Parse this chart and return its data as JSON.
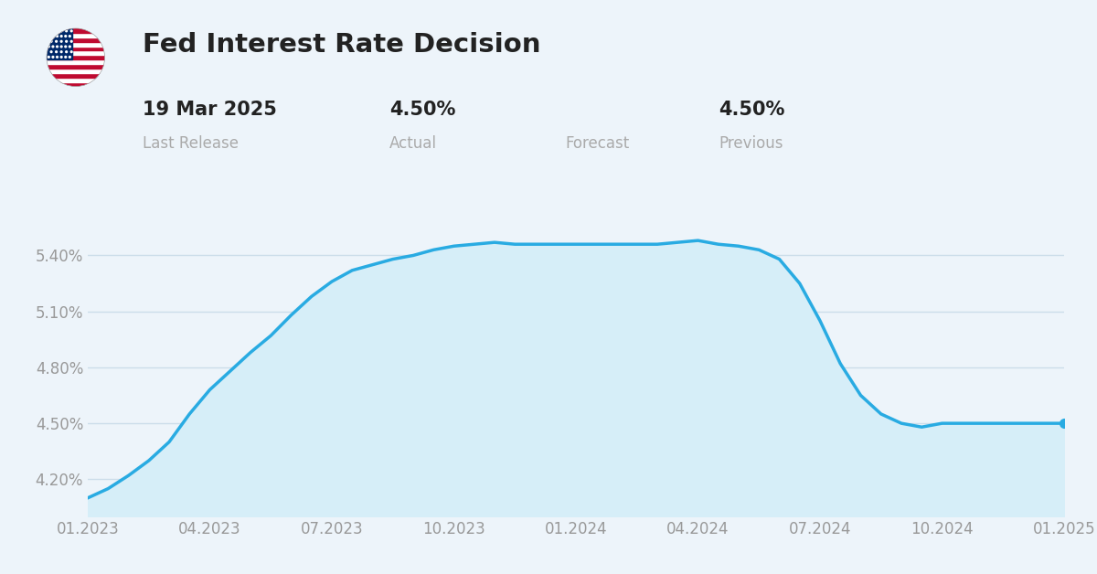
{
  "title": "Fed Interest Rate Decision",
  "last_release": "19 Mar 2025",
  "actual": "4.50%",
  "forecast": "",
  "previous": "4.50%",
  "line_color": "#29ABE2",
  "fill_color": "#D6EEF8",
  "background_color": "#EDF4FA",
  "grid_color": "#CCDDEA",
  "ylabel_color": "#999999",
  "xlabel_color": "#999999",
  "yticks": [
    4.2,
    4.5,
    4.8,
    5.1,
    5.4
  ],
  "ytick_labels": [
    "4.20%",
    "4.50%",
    "4.80%",
    "5.10%",
    "5.40%"
  ],
  "xtick_labels": [
    "01.2023",
    "04.2023",
    "07.2023",
    "10.2023",
    "01.2024",
    "04.2024",
    "07.2024",
    "10.2024",
    "01.2025"
  ],
  "x_data": [
    0,
    0.5,
    1.0,
    1.5,
    2.0,
    2.5,
    3.0,
    3.5,
    4.0,
    4.5,
    5.0,
    5.5,
    6.0,
    6.5,
    7.0,
    7.5,
    8.0,
    8.5,
    9.0,
    9.5,
    10.0,
    10.5,
    11.0,
    11.5,
    12.0,
    12.5,
    13.0,
    13.5,
    14.0,
    14.5,
    15.0,
    15.5,
    16.0,
    16.5,
    17.0,
    17.5,
    18.0,
    18.5,
    19.0,
    19.5,
    20.0,
    20.5,
    21.0,
    21.5,
    22.0,
    22.5,
    23.0,
    23.5,
    24.0
  ],
  "y_data": [
    4.1,
    4.15,
    4.22,
    4.3,
    4.4,
    4.55,
    4.68,
    4.78,
    4.88,
    4.97,
    5.08,
    5.18,
    5.26,
    5.32,
    5.35,
    5.38,
    5.4,
    5.43,
    5.45,
    5.46,
    5.47,
    5.46,
    5.46,
    5.46,
    5.46,
    5.46,
    5.46,
    5.46,
    5.46,
    5.47,
    5.48,
    5.46,
    5.45,
    5.43,
    5.38,
    5.25,
    5.05,
    4.82,
    4.65,
    4.55,
    4.5,
    4.48,
    4.5,
    4.5,
    4.5,
    4.5,
    4.5,
    4.5,
    4.5
  ],
  "ylim": [
    4.0,
    5.6
  ],
  "xlim": [
    0,
    24
  ],
  "flag_red": "#BF0A30",
  "flag_blue": "#002868",
  "flag_white": "#FFFFFF",
  "text_dark": "#222222",
  "text_gray": "#AAAAAA"
}
